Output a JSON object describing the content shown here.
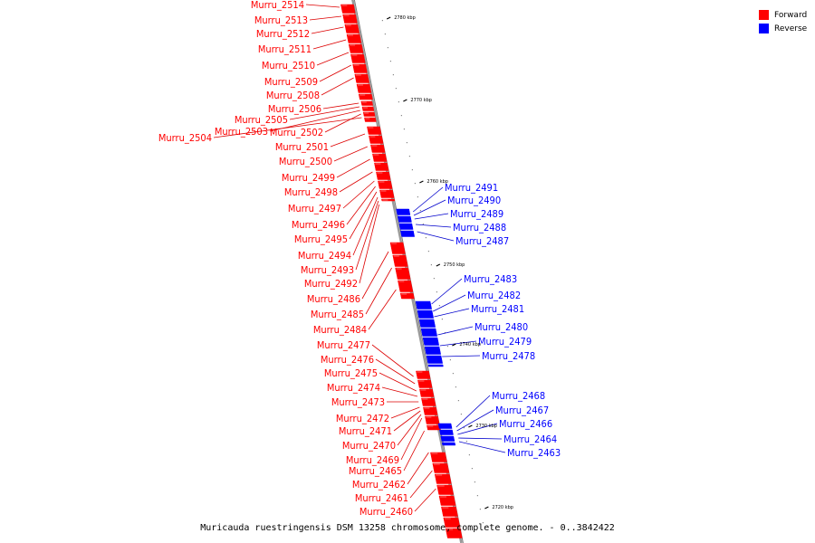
{
  "caption": "Muricauda ruestringensis DSM 13258 chromosome, complete genome. - 0..3842422",
  "legend": [
    {
      "label": "Forward",
      "color": "#ff0000"
    },
    {
      "label": "Reverse",
      "color": "#0000ff"
    }
  ],
  "colors": {
    "forward": "#ff0000",
    "reverse": "#0000ff",
    "line_forward": "#dd0000",
    "line_reverse": "#0000cc",
    "axis": "#999999"
  },
  "scale_ticks": [
    {
      "label": "2780 kbp"
    },
    {
      "label": "2770 kbp"
    },
    {
      "label": "2760 kbp"
    },
    {
      "label": "2750 kbp"
    },
    {
      "label": "2740 kbp"
    },
    {
      "label": "2730 kbp"
    },
    {
      "label": "2720 kbp"
    }
  ],
  "forward_genes": [
    "Murru_2514",
    "Murru_2513",
    "Murru_2512",
    "Murru_2511",
    "Murru_2510",
    "Murru_2509",
    "Murru_2508",
    "Murru_2506",
    "Murru_2505",
    "Murru_2503",
    "Murru_2502",
    "Murru_2504",
    "Murru_2501",
    "Murru_2500",
    "Murru_2499",
    "Murru_2498",
    "Murru_2497",
    "Murru_2496",
    "Murru_2495",
    "Murru_2494",
    "Murru_2493",
    "Murru_2492",
    "Murru_2486",
    "Murru_2485",
    "Murru_2484",
    "Murru_2477",
    "Murru_2476",
    "Murru_2475",
    "Murru_2474",
    "Murru_2473",
    "Murru_2472",
    "Murru_2471",
    "Murru_2470",
    "Murru_2469",
    "Murru_2465",
    "Murru_2462",
    "Murru_2461",
    "Murru_2460"
  ],
  "reverse_genes": [
    "Murru_2491",
    "Murru_2490",
    "Murru_2489",
    "Murru_2488",
    "Murru_2487",
    "Murru_2483",
    "Murru_2482",
    "Murru_2481",
    "Murru_2480",
    "Murru_2479",
    "Murru_2478",
    "Murru_2468",
    "Murru_2467",
    "Murru_2466",
    "Murru_2464",
    "Murru_2463"
  ]
}
